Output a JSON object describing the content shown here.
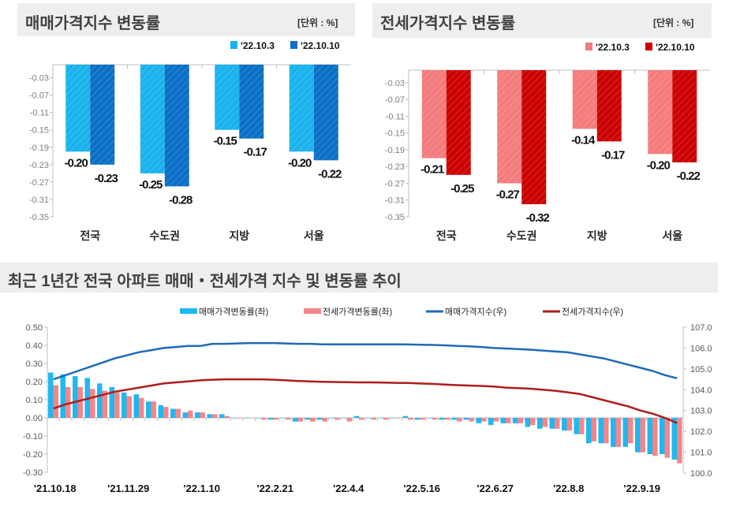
{
  "charts_top": [
    {
      "title": "매매가격지수 변동률",
      "unit": "[단위 : %]",
      "colors": [
        "#19b2ec",
        "#0b6fc6"
      ]
    },
    {
      "title": "전세가격지수 변동률",
      "unit": "[단위 : %]",
      "colors": [
        "#f47c7c",
        "#cc0000"
      ]
    }
  ],
  "bottom": {
    "title": "최근 1년간 전국 아파트 매매・전세가격 지수 및 변동률 추이",
    "colors": {
      "sale_bar": "#1fb8f0",
      "jeonse_bar": "#f4868a",
      "sale_line": "#1e6bb8",
      "jeonse_line": "#b01c1c"
    }
  },
  "chart_data": [
    {
      "type": "bar",
      "title": "매매가격지수 변동률",
      "categories": [
        "전국",
        "수도권",
        "지방",
        "서울"
      ],
      "series": [
        {
          "name": "'22.10.3",
          "values": [
            -0.2,
            -0.25,
            -0.15,
            -0.2
          ]
        },
        {
          "name": "'22.10.10",
          "values": [
            -0.23,
            -0.28,
            -0.17,
            -0.22
          ]
        }
      ],
      "ylim": [
        -0.35,
        0.0
      ],
      "yticks": [
        "-0.03",
        "-0.07",
        "-0.11",
        "-0.15",
        "-0.19",
        "-0.23",
        "-0.27",
        "-0.31",
        "-0.35"
      ],
      "legend": "top-right"
    },
    {
      "type": "bar",
      "title": "전세가격지수 변동률",
      "categories": [
        "전국",
        "수도권",
        "지방",
        "서울"
      ],
      "series": [
        {
          "name": "'22.10.3",
          "values": [
            -0.21,
            -0.27,
            -0.14,
            -0.2
          ]
        },
        {
          "name": "'22.10.10",
          "values": [
            -0.25,
            -0.32,
            -0.17,
            -0.22
          ]
        }
      ],
      "ylim": [
        -0.35,
        0.0
      ],
      "yticks": [
        "-0.03",
        "-0.07",
        "-0.11",
        "-0.15",
        "-0.19",
        "-0.23",
        "-0.27",
        "-0.31",
        "-0.35"
      ],
      "legend": "top-right"
    },
    {
      "type": "bar+line",
      "title": "최근 1년간 전국 아파트 매매・전세가격 지수 및 변동률 추이",
      "xticks": [
        "'21.10.18",
        "'21.11.29",
        "'22.1.10",
        "'22.2.21",
        "'22.4.4",
        "'22.5.16",
        "'22.6.27",
        "'22.8.8",
        "'22.9.19"
      ],
      "ylim_left": [
        -0.3,
        0.5
      ],
      "yticks_left": [
        "0.50",
        "0.40",
        "0.30",
        "0.20",
        "0.10",
        "0.00",
        "-0.10",
        "-0.20",
        "-0.30"
      ],
      "ylim_right": [
        100.0,
        107.0
      ],
      "yticks_right": [
        "107.0",
        "106.0",
        "105.0",
        "104.0",
        "103.0",
        "102.0",
        "101.0",
        "100.0"
      ],
      "legend": "top",
      "series": [
        {
          "name": "매매가격변동률(좌)",
          "axis": "left",
          "kind": "bar",
          "values": [
            0.25,
            0.24,
            0.23,
            0.22,
            0.19,
            0.17,
            0.14,
            0.13,
            0.09,
            0.07,
            0.05,
            0.03,
            0.03,
            0.02,
            0.02,
            0.0,
            0.0,
            0.0,
            -0.01,
            0.0,
            -0.02,
            -0.01,
            -0.01,
            0.0,
            0.0,
            0.01,
            0.0,
            0.0,
            0.0,
            0.01,
            -0.01,
            0.0,
            -0.01,
            -0.01,
            -0.01,
            -0.03,
            -0.04,
            -0.03,
            -0.03,
            -0.05,
            -0.06,
            -0.06,
            -0.07,
            -0.09,
            -0.14,
            -0.14,
            -0.16,
            -0.16,
            -0.19,
            -0.2,
            -0.2,
            -0.23
          ]
        },
        {
          "name": "전세가격변동률(좌)",
          "axis": "left",
          "kind": "bar",
          "values": [
            0.18,
            0.17,
            0.17,
            0.16,
            0.15,
            0.14,
            0.12,
            0.11,
            0.09,
            0.06,
            0.05,
            0.04,
            0.03,
            0.02,
            0.01,
            0.0,
            0.0,
            -0.01,
            -0.01,
            -0.01,
            -0.02,
            -0.02,
            -0.02,
            -0.01,
            -0.02,
            -0.01,
            -0.01,
            -0.01,
            0.0,
            -0.01,
            -0.01,
            -0.01,
            -0.01,
            -0.02,
            -0.02,
            -0.02,
            -0.02,
            -0.03,
            -0.03,
            -0.04,
            -0.05,
            -0.06,
            -0.07,
            -0.09,
            -0.13,
            -0.14,
            -0.16,
            -0.14,
            -0.19,
            -0.21,
            -0.22,
            -0.25
          ]
        },
        {
          "name": "매매가격지수(우)",
          "axis": "right",
          "kind": "line",
          "values": [
            104.5,
            104.7,
            104.9,
            105.1,
            105.3,
            105.5,
            105.65,
            105.8,
            105.9,
            106.0,
            106.05,
            106.1,
            106.1,
            106.2,
            106.2,
            106.22,
            106.24,
            106.24,
            106.24,
            106.22,
            106.2,
            106.2,
            106.18,
            106.18,
            106.18,
            106.18,
            106.18,
            106.18,
            106.18,
            106.17,
            106.16,
            106.15,
            106.13,
            106.1,
            106.08,
            106.05,
            106.0,
            105.98,
            105.95,
            105.92,
            105.88,
            105.84,
            105.8,
            105.7,
            105.6,
            105.5,
            105.35,
            105.2,
            105.05,
            104.9,
            104.7,
            104.55
          ]
        },
        {
          "name": "전세가격지수(우)",
          "axis": "right",
          "kind": "line",
          "values": [
            103.1,
            103.3,
            103.45,
            103.6,
            103.75,
            103.9,
            104.0,
            104.1,
            104.2,
            104.3,
            104.35,
            104.4,
            104.45,
            104.48,
            104.5,
            104.5,
            104.5,
            104.5,
            104.48,
            104.45,
            104.42,
            104.4,
            104.38,
            104.37,
            104.36,
            104.35,
            104.35,
            104.34,
            104.33,
            104.32,
            104.3,
            104.28,
            104.25,
            104.22,
            104.2,
            104.18,
            104.15,
            104.1,
            104.08,
            104.05,
            104.0,
            103.95,
            103.88,
            103.8,
            103.65,
            103.5,
            103.35,
            103.2,
            103.0,
            102.85,
            102.65,
            102.4
          ]
        }
      ]
    }
  ]
}
